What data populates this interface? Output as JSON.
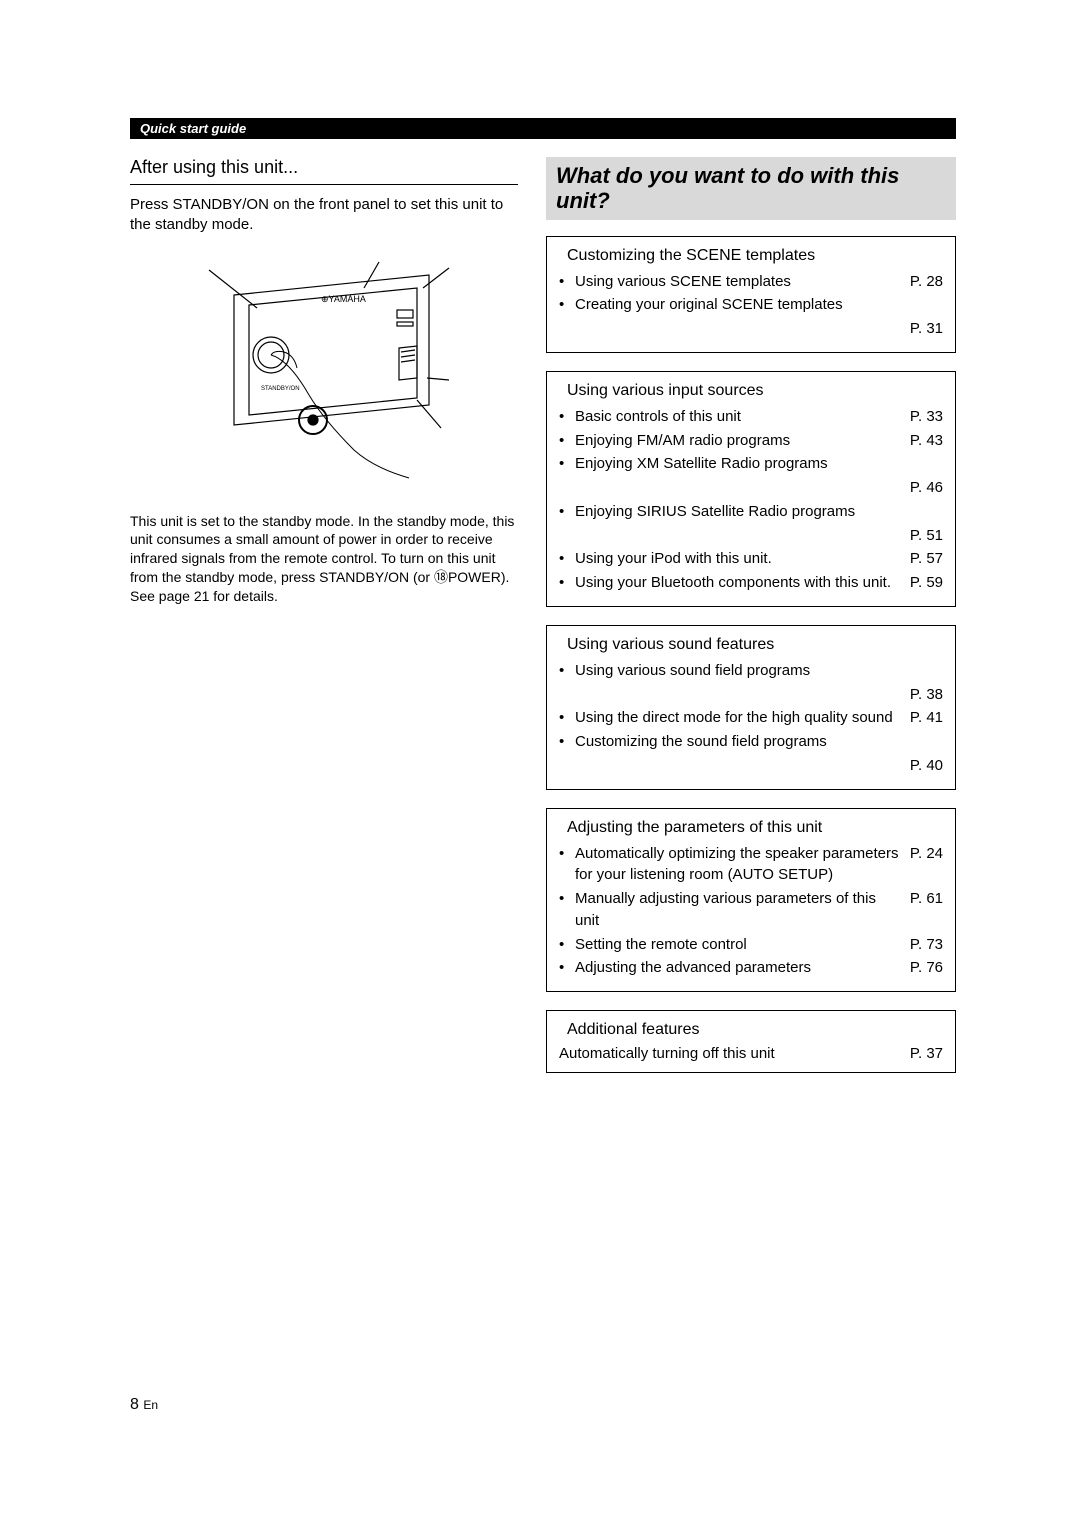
{
  "header": {
    "label": "Quick start guide"
  },
  "left": {
    "subtitle": "After using this unit...",
    "intro_prefix": "Press ",
    "intro_button": "STANDBY/ON",
    "intro_suffix": " on the front panel to set this unit to the standby mode.",
    "illus_brand": "YAMAHA",
    "note": "This unit is set to the standby mode. In the standby mode, this unit consumes a small amount of power in order to receive infrared signals from the remote control. To turn on this unit from the standby mode, press STANDBY/ON (or ⑱POWER). See page 21 for details."
  },
  "right": {
    "title": "What do you want to do with this unit?",
    "boxes": [
      {
        "title": "Customizing the SCENE templates",
        "items": [
          {
            "text": "Using various SCENE templates",
            "page": "P. 28",
            "inline": true
          },
          {
            "text": "Creating your original SCENE templates",
            "page": "P. 31",
            "inline": false
          }
        ]
      },
      {
        "title": "Using various input sources",
        "items": [
          {
            "text": "Basic controls of this unit",
            "page": "P. 33",
            "inline": true
          },
          {
            "text": "Enjoying FM/AM radio programs",
            "page": "P. 43",
            "inline": true
          },
          {
            "text": "Enjoying XM Satellite Radio programs",
            "page": "P. 46",
            "inline": false
          },
          {
            "text": "Enjoying SIRIUS Satellite Radio programs",
            "page": "P. 51",
            "inline": false
          },
          {
            "text": "Using your iPod with this unit.",
            "page": "P. 57",
            "inline": true
          },
          {
            "text": "Using your Bluetooth components with this unit.",
            "page": "P. 59",
            "inline": true
          }
        ]
      },
      {
        "title": "Using various sound features",
        "items": [
          {
            "text": "Using various sound field programs",
            "page": "P. 38",
            "inline": false
          },
          {
            "text": "Using the direct mode for the high quality sound",
            "page": "P. 41",
            "inline": true
          },
          {
            "text": "Customizing the sound field programs",
            "page": "P. 40",
            "inline": false
          }
        ]
      },
      {
        "title": "Adjusting the parameters of this unit",
        "items": [
          {
            "text": "Automatically optimizing the speaker parameters for your listening room (AUTO SETUP)",
            "page": "P. 24",
            "inline": true
          },
          {
            "text": "Manually adjusting various parameters of this unit",
            "page": "P. 61",
            "inline": true
          },
          {
            "text": "Setting the remote control",
            "page": "P. 73",
            "inline": true
          },
          {
            "text": "Adjusting the advanced parameters",
            "page": "P. 76",
            "inline": true
          }
        ]
      },
      {
        "title": "Additional features",
        "single": {
          "text": "Automatically turning off this unit",
          "page": "P. 37"
        }
      }
    ]
  },
  "footer": {
    "page_num": "8",
    "lang": "En"
  }
}
